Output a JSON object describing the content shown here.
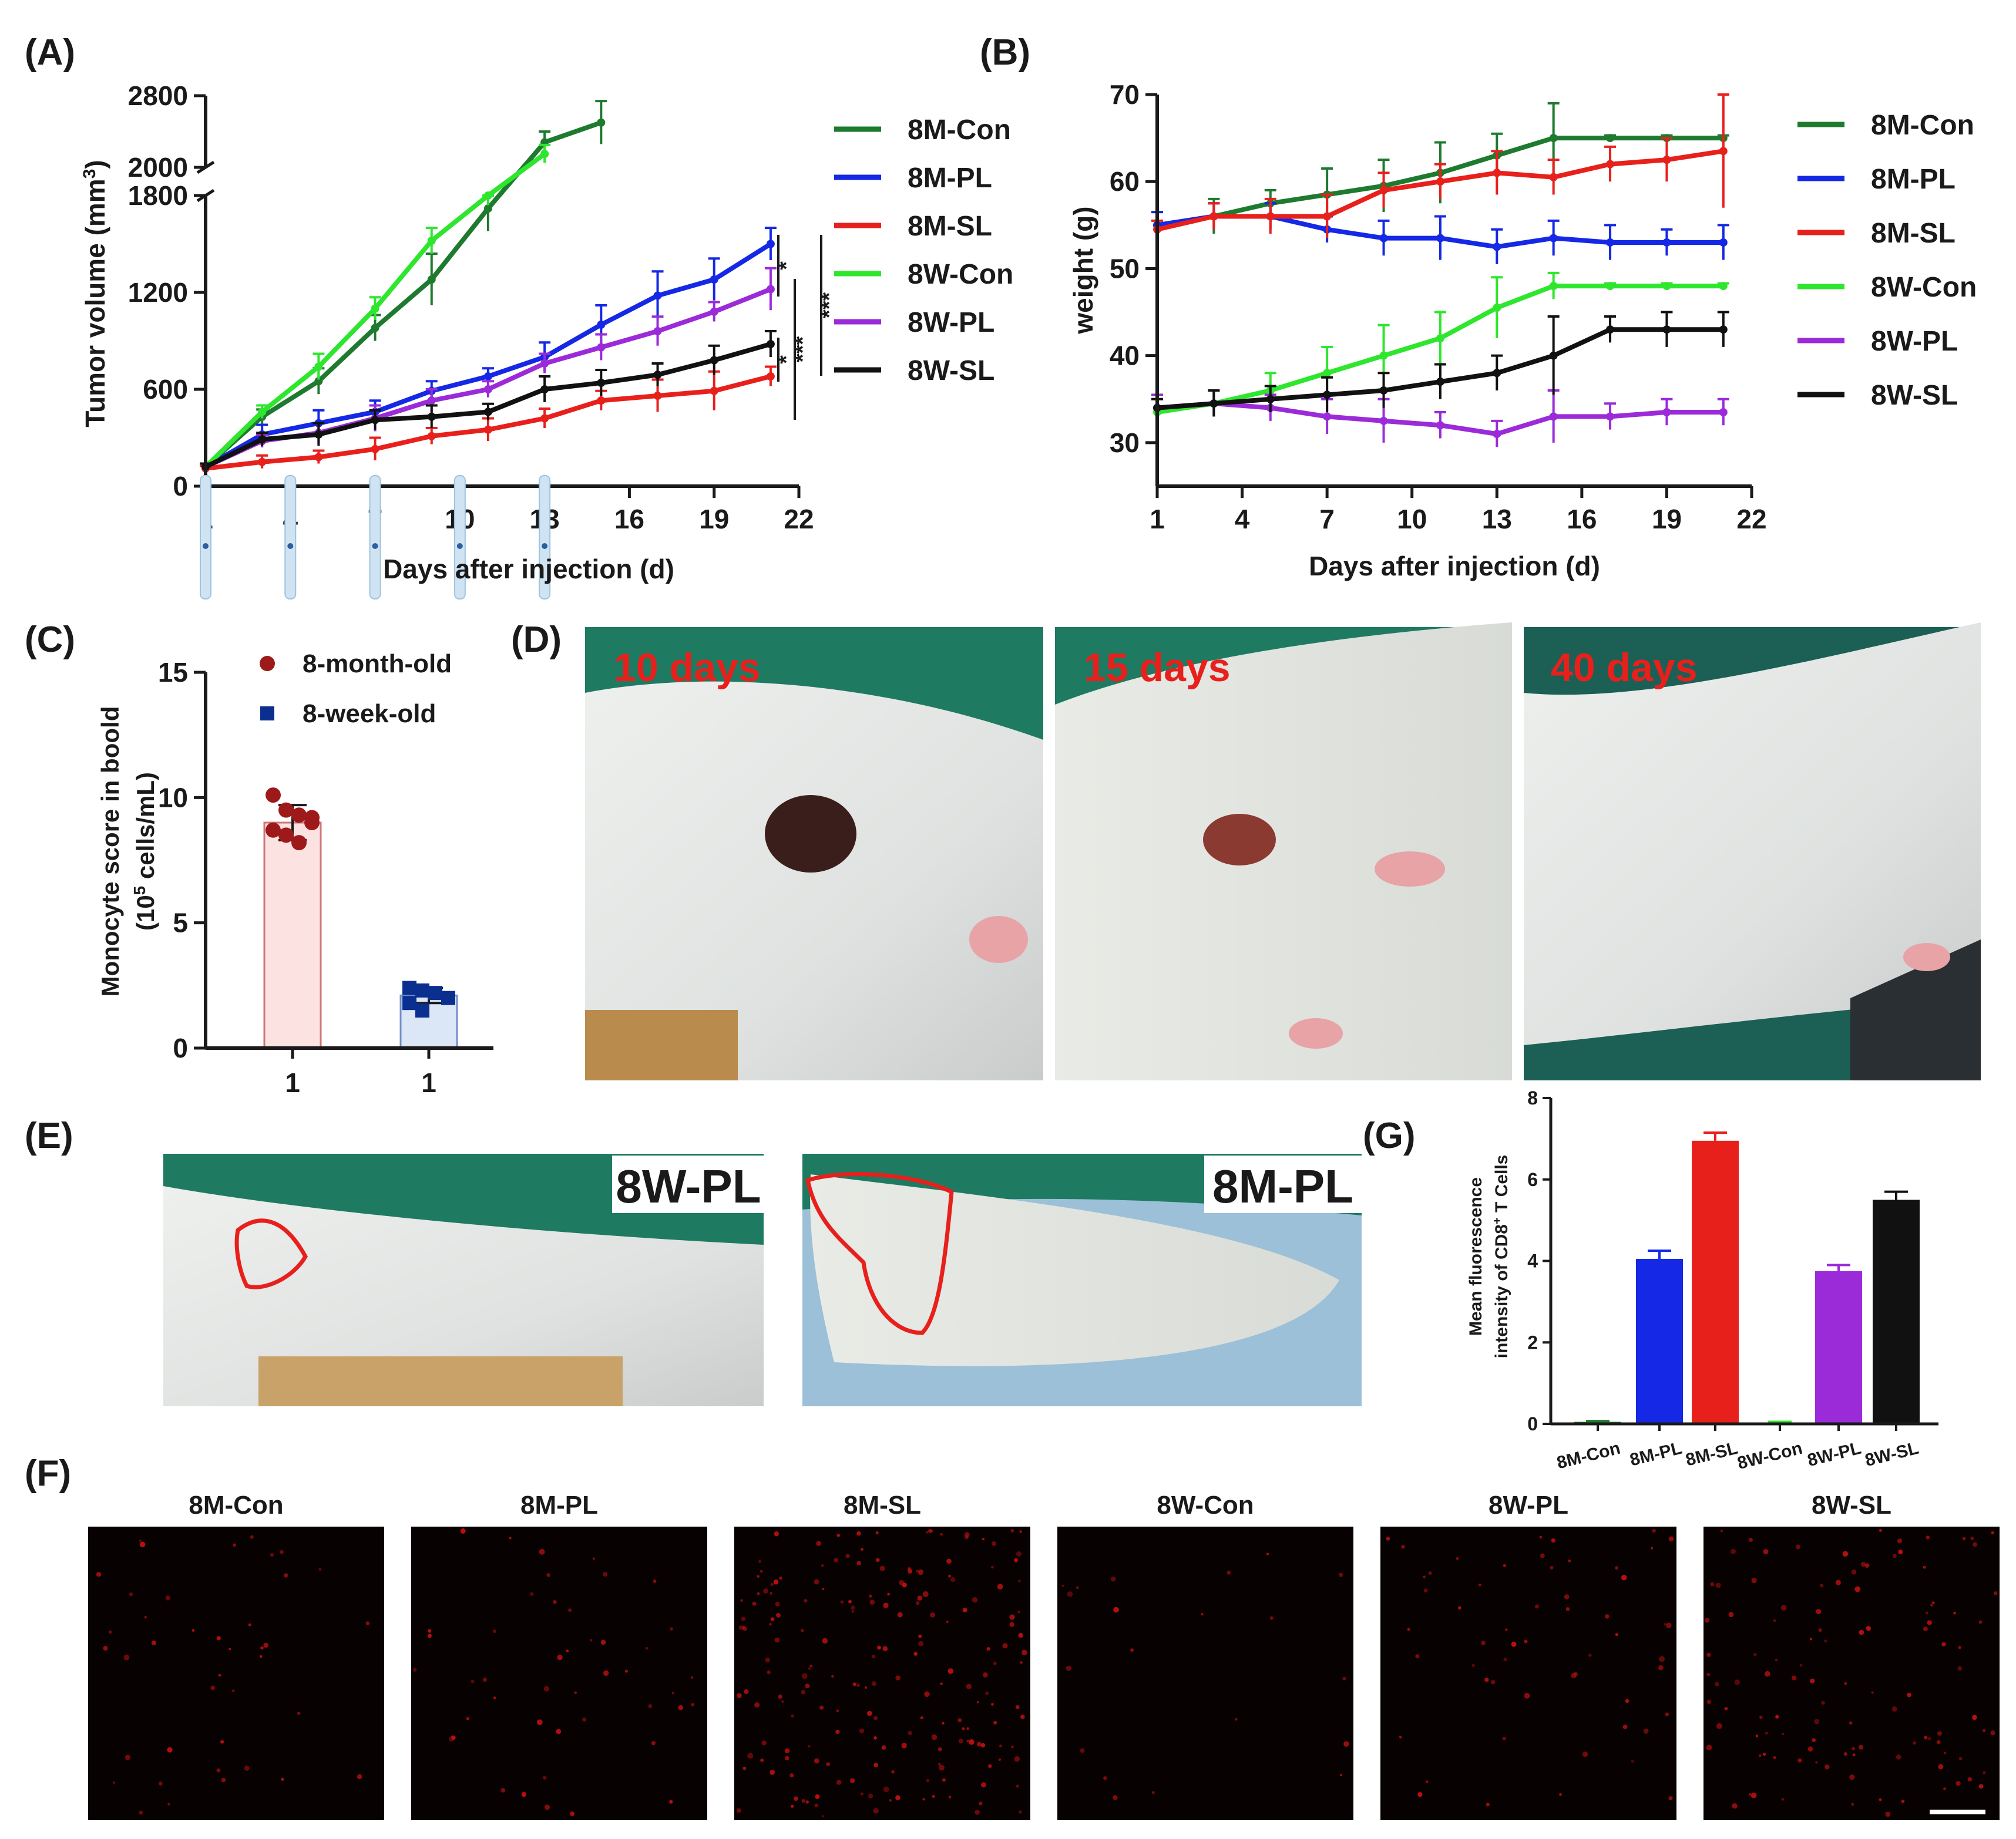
{
  "panel_labels": {
    "a": "(A)",
    "b": "(B)",
    "c": "(C)",
    "d": "(D)",
    "e": "(E)",
    "f": "(F)",
    "g": "(G)"
  },
  "colors": {
    "8M-Con": "#1e7a2e",
    "8M-PL": "#1428e6",
    "8M-SL": "#e8201c",
    "8W-Con": "#2ee62e",
    "8W-PL": "#9b2bd9",
    "8W-SL": "#111111",
    "month": "#9e1a1a",
    "week": "#0a2f8f"
  },
  "chart_data": [
    {
      "id": "A",
      "type": "line",
      "xlabel": "Days after injection (d)",
      "ylabel": "Tumor volume (mm",
      "ylabel_sup": "3",
      "ylabel_end": ")",
      "xticks": [
        1,
        4,
        7,
        10,
        13,
        16,
        19,
        22
      ],
      "yticks_lower": [
        0,
        600,
        1200,
        1800
      ],
      "yticks_upper": [
        2000,
        2800
      ],
      "ylim": [
        0,
        2800
      ],
      "axis_break": [
        1800,
        2000
      ],
      "significance": [
        "*",
        "***",
        "***",
        "*"
      ],
      "series": [
        {
          "name": "8M-Con",
          "x": [
            1,
            3,
            5,
            7,
            9,
            11,
            13,
            15
          ],
          "y": [
            120,
            430,
            650,
            980,
            1280,
            1720,
            2280,
            2500
          ],
          "err": [
            20,
            45,
            80,
            80,
            160,
            140,
            120,
            240
          ]
        },
        {
          "name": "8M-PL",
          "x": [
            1,
            3,
            5,
            7,
            9,
            11,
            13,
            15,
            17,
            19,
            21
          ],
          "y": [
            120,
            320,
            390,
            460,
            590,
            680,
            800,
            1000,
            1180,
            1280,
            1500
          ],
          "err": [
            20,
            60,
            80,
            70,
            60,
            50,
            90,
            120,
            150,
            130,
            100
          ]
        },
        {
          "name": "8M-SL",
          "x": [
            1,
            3,
            5,
            7,
            9,
            11,
            13,
            15,
            17,
            19,
            21
          ],
          "y": [
            110,
            150,
            180,
            230,
            310,
            350,
            420,
            530,
            560,
            590,
            680
          ],
          "err": [
            15,
            40,
            40,
            70,
            50,
            70,
            60,
            60,
            100,
            120,
            60
          ]
        },
        {
          "name": "8W-Con",
          "x": [
            1,
            3,
            5,
            7,
            9,
            11,
            13
          ],
          "y": [
            120,
            460,
            740,
            1100,
            1520,
            1820,
            2150
          ],
          "err": [
            20,
            40,
            80,
            70,
            80,
            80,
            100
          ]
        },
        {
          "name": "8W-PL",
          "x": [
            1,
            3,
            5,
            7,
            9,
            11,
            13,
            15,
            17,
            19,
            21
          ],
          "y": [
            120,
            280,
            330,
            420,
            530,
            600,
            760,
            860,
            960,
            1080,
            1220
          ],
          "err": [
            20,
            40,
            60,
            80,
            70,
            50,
            60,
            80,
            90,
            60,
            130
          ]
        },
        {
          "name": "8W-SL",
          "x": [
            1,
            3,
            5,
            7,
            9,
            11,
            13,
            15,
            17,
            19,
            21
          ],
          "y": [
            120,
            290,
            320,
            410,
            430,
            460,
            600,
            640,
            690,
            780,
            880
          ],
          "err": [
            20,
            40,
            70,
            60,
            70,
            50,
            80,
            80,
            70,
            90,
            80
          ]
        }
      ]
    },
    {
      "id": "B",
      "type": "line",
      "xlabel": "Days after injection (d)",
      "ylabel": "weight (g)",
      "xticks": [
        1,
        4,
        7,
        10,
        13,
        16,
        19,
        22
      ],
      "yticks": [
        30,
        40,
        50,
        60,
        70
      ],
      "ylim": [
        25,
        70
      ],
      "series": [
        {
          "name": "8M-Con",
          "x": [
            1,
            3,
            5,
            7,
            9,
            11,
            13,
            15,
            17,
            19,
            21
          ],
          "y": [
            55,
            56,
            57.5,
            58.5,
            59.5,
            61,
            63,
            65,
            65,
            65,
            65
          ],
          "err": [
            1.5,
            2,
            1.5,
            3,
            3,
            3.5,
            2.5,
            4,
            0.3,
            0.3,
            0.3
          ]
        },
        {
          "name": "8M-PL",
          "x": [
            1,
            3,
            5,
            7,
            9,
            11,
            13,
            15,
            17,
            19,
            21
          ],
          "y": [
            55,
            56,
            56,
            54.5,
            53.5,
            53.5,
            52.5,
            53.5,
            53,
            53,
            53
          ],
          "err": [
            1.5,
            1.5,
            1.5,
            1.5,
            2,
            2.5,
            2,
            2,
            2,
            1.5,
            2
          ]
        },
        {
          "name": "8M-SL",
          "x": [
            1,
            3,
            5,
            7,
            9,
            11,
            13,
            15,
            17,
            19,
            21
          ],
          "y": [
            54.5,
            56,
            56,
            56,
            59,
            60,
            61,
            60.5,
            62,
            62.5,
            63.5
          ],
          "err": [
            1,
            1.5,
            2,
            2.5,
            2,
            2,
            2.5,
            2,
            2,
            2.5,
            6.5
          ]
        },
        {
          "name": "8W-Con",
          "x": [
            1,
            3,
            5,
            7,
            9,
            11,
            13,
            15,
            17,
            19,
            21
          ],
          "y": [
            33.5,
            34.5,
            36,
            38,
            40,
            42,
            45.5,
            48,
            48,
            48,
            48
          ],
          "err": [
            1.5,
            1.5,
            2,
            3,
            3.5,
            3,
            3.5,
            1.5,
            0.3,
            0.3,
            0.3
          ]
        },
        {
          "name": "8W-PL",
          "x": [
            1,
            3,
            5,
            7,
            9,
            11,
            13,
            15,
            17,
            19,
            21
          ],
          "y": [
            34,
            34.5,
            34,
            33,
            32.5,
            32,
            31,
            33,
            33,
            33.5,
            33.5
          ],
          "err": [
            1.5,
            1.5,
            1.5,
            2,
            2.5,
            1.5,
            1.5,
            3,
            1.5,
            1.5,
            1.5
          ]
        },
        {
          "name": "8W-SL",
          "x": [
            1,
            3,
            5,
            7,
            9,
            11,
            13,
            15,
            17,
            19,
            21
          ],
          "y": [
            34,
            34.5,
            35,
            35.5,
            36,
            37,
            38,
            40,
            43,
            43,
            43
          ],
          "err": [
            1,
            1.5,
            1.5,
            2,
            2,
            2,
            2,
            4.5,
            1.5,
            2,
            2
          ]
        }
      ]
    },
    {
      "id": "C",
      "type": "bar",
      "ylabel": "Monocyte score in boold",
      "ylabel2_pre": "(10",
      "ylabel2_sup": "5",
      "ylabel2_post": " cells/mL)",
      "categories": [
        "1",
        "1"
      ],
      "yticks": [
        0,
        5,
        10,
        15
      ],
      "ylim": [
        0,
        15
      ],
      "series": [
        {
          "name": "8-month-old",
          "mean": 9.0,
          "err": 0.7,
          "points": [
            10.1,
            9.5,
            9.3,
            9.0,
            8.7,
            8.5,
            8.2,
            9.2
          ]
        },
        {
          "name": "8-week-old",
          "mean": 2.1,
          "err": 0.3,
          "points": [
            2.4,
            2.3,
            2.2,
            2.0,
            1.8,
            1.5
          ]
        }
      ]
    },
    {
      "id": "G",
      "type": "bar",
      "ylabel": "Mean fluorescence",
      "ylabel2_pre": "intensity of CD8",
      "ylabel2_sup": "+",
      "ylabel2_post": " T Cells",
      "categories": [
        "8M-Con",
        "8M-PL",
        "8M-SL",
        "8W-Con",
        "8W-PL",
        "8W-SL"
      ],
      "values": [
        0.05,
        4.05,
        6.95,
        0.03,
        3.75,
        5.5
      ],
      "err": [
        0.02,
        0.2,
        0.2,
        0.02,
        0.15,
        0.2
      ],
      "yticks": [
        0,
        2,
        4,
        6,
        8
      ],
      "ylim": [
        0,
        8
      ]
    }
  ],
  "photos_d": [
    {
      "label": "10 days"
    },
    {
      "label": "15 days"
    },
    {
      "label": "40 days"
    }
  ],
  "photos_e": [
    {
      "label": "8W-PL"
    },
    {
      "label": "8M-PL"
    }
  ],
  "photos_f": [
    {
      "label": "8M-Con",
      "density": 40
    },
    {
      "label": "8M-PL",
      "density": 45
    },
    {
      "label": "8M-SL",
      "density": 190
    },
    {
      "label": "8W-Con",
      "density": 20
    },
    {
      "label": "8W-PL",
      "density": 55
    },
    {
      "label": "8W-SL",
      "density": 110
    }
  ]
}
